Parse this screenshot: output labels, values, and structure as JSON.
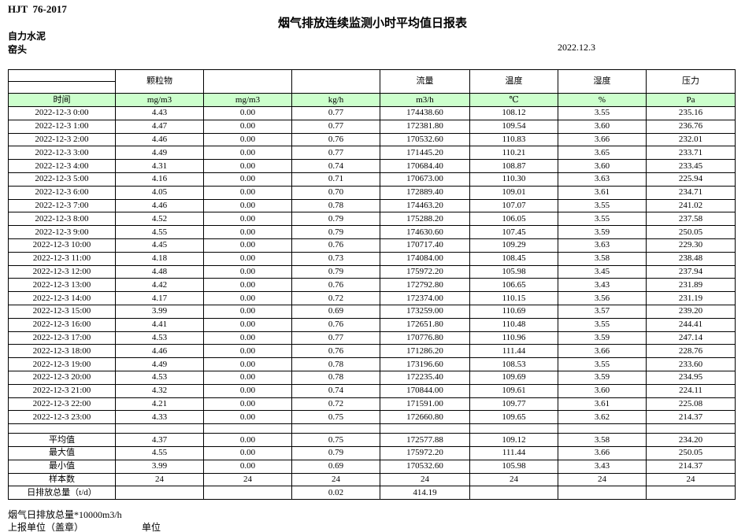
{
  "header": {
    "standard_code": "HJT  76-2017",
    "title": "烟气排放连续监测小时平均值日报表",
    "company": "自力水泥",
    "unit_name": "窑头",
    "date": "2022.12.3"
  },
  "colors": {
    "unit_row_green": "#ccffcc",
    "border": "#000000"
  },
  "table": {
    "group_headers": [
      "",
      "颗粒物",
      "",
      "",
      "流量",
      "温度",
      "湿度",
      "压力"
    ],
    "unit_row": [
      "时间",
      "mg/m3",
      "mg/m3",
      "kg/h",
      "m3/h",
      "℃",
      "%",
      "Pa"
    ],
    "rows": [
      [
        "2022-12-3 0:00",
        "4.43",
        "0.00",
        "0.77",
        "174438.60",
        "108.12",
        "3.55",
        "235.16"
      ],
      [
        "2022-12-3 1:00",
        "4.47",
        "0.00",
        "0.77",
        "172381.80",
        "109.54",
        "3.60",
        "236.76"
      ],
      [
        "2022-12-3 2:00",
        "4.46",
        "0.00",
        "0.76",
        "170532.60",
        "110.83",
        "3.66",
        "232.01"
      ],
      [
        "2022-12-3 3:00",
        "4.49",
        "0.00",
        "0.77",
        "171445.20",
        "110.21",
        "3.65",
        "233.71"
      ],
      [
        "2022-12-3 4:00",
        "4.31",
        "0.00",
        "0.74",
        "170684.40",
        "108.87",
        "3.60",
        "233.45"
      ],
      [
        "2022-12-3 5:00",
        "4.16",
        "0.00",
        "0.71",
        "170673.00",
        "110.30",
        "3.63",
        "225.94"
      ],
      [
        "2022-12-3 6:00",
        "4.05",
        "0.00",
        "0.70",
        "172889.40",
        "109.01",
        "3.61",
        "234.71"
      ],
      [
        "2022-12-3 7:00",
        "4.46",
        "0.00",
        "0.78",
        "174463.20",
        "107.07",
        "3.55",
        "241.02"
      ],
      [
        "2022-12-3 8:00",
        "4.52",
        "0.00",
        "0.79",
        "175288.20",
        "106.05",
        "3.55",
        "237.58"
      ],
      [
        "2022-12-3 9:00",
        "4.55",
        "0.00",
        "0.79",
        "174630.60",
        "107.45",
        "3.59",
        "250.05"
      ],
      [
        "2022-12-3 10:00",
        "4.45",
        "0.00",
        "0.76",
        "170717.40",
        "109.29",
        "3.63",
        "229.30"
      ],
      [
        "2022-12-3 11:00",
        "4.18",
        "0.00",
        "0.73",
        "174084.00",
        "108.45",
        "3.58",
        "238.48"
      ],
      [
        "2022-12-3 12:00",
        "4.48",
        "0.00",
        "0.79",
        "175972.20",
        "105.98",
        "3.45",
        "237.94"
      ],
      [
        "2022-12-3 13:00",
        "4.42",
        "0.00",
        "0.76",
        "172792.80",
        "106.65",
        "3.43",
        "231.89"
      ],
      [
        "2022-12-3 14:00",
        "4.17",
        "0.00",
        "0.72",
        "172374.00",
        "110.15",
        "3.56",
        "231.19"
      ],
      [
        "2022-12-3 15:00",
        "3.99",
        "0.00",
        "0.69",
        "173259.00",
        "110.69",
        "3.57",
        "239.20"
      ],
      [
        "2022-12-3 16:00",
        "4.41",
        "0.00",
        "0.76",
        "172651.80",
        "110.48",
        "3.55",
        "244.41"
      ],
      [
        "2022-12-3 17:00",
        "4.53",
        "0.00",
        "0.77",
        "170776.80",
        "110.96",
        "3.59",
        "247.14"
      ],
      [
        "2022-12-3 18:00",
        "4.46",
        "0.00",
        "0.76",
        "171286.20",
        "111.44",
        "3.66",
        "228.76"
      ],
      [
        "2022-12-3 19:00",
        "4.49",
        "0.00",
        "0.78",
        "173196.60",
        "108.53",
        "3.55",
        "233.60"
      ],
      [
        "2022-12-3 20:00",
        "4.53",
        "0.00",
        "0.78",
        "172235.40",
        "109.69",
        "3.59",
        "234.95"
      ],
      [
        "2022-12-3 21:00",
        "4.32",
        "0.00",
        "0.74",
        "170844.00",
        "109.61",
        "3.60",
        "224.11"
      ],
      [
        "2022-12-3 22:00",
        "4.21",
        "0.00",
        "0.72",
        "171591.00",
        "109.77",
        "3.61",
        "225.08"
      ],
      [
        "2022-12-3 23:00",
        "4.33",
        "0.00",
        "0.75",
        "172660.80",
        "109.65",
        "3.62",
        "214.37"
      ]
    ],
    "summary_rows": [
      [
        "平均值",
        "4.37",
        "0.00",
        "0.75",
        "172577.88",
        "109.12",
        "3.58",
        "234.20"
      ],
      [
        "最大值",
        "4.55",
        "0.00",
        "0.79",
        "175972.20",
        "111.44",
        "3.66",
        "250.05"
      ],
      [
        "最小值",
        "3.99",
        "0.00",
        "0.69",
        "170532.60",
        "105.98",
        "3.43",
        "214.37"
      ],
      [
        "样本数",
        "24",
        "24",
        "24",
        "24",
        "24",
        "24",
        "24"
      ],
      [
        "日排放总量（t/d）",
        "",
        "",
        "0.02",
        "414.19",
        "",
        "",
        ""
      ]
    ]
  },
  "footer": {
    "note": "烟气日排放总量*10000m3/h",
    "report_unit_label": "上报单位（盖章）",
    "unit_label": "单位"
  }
}
